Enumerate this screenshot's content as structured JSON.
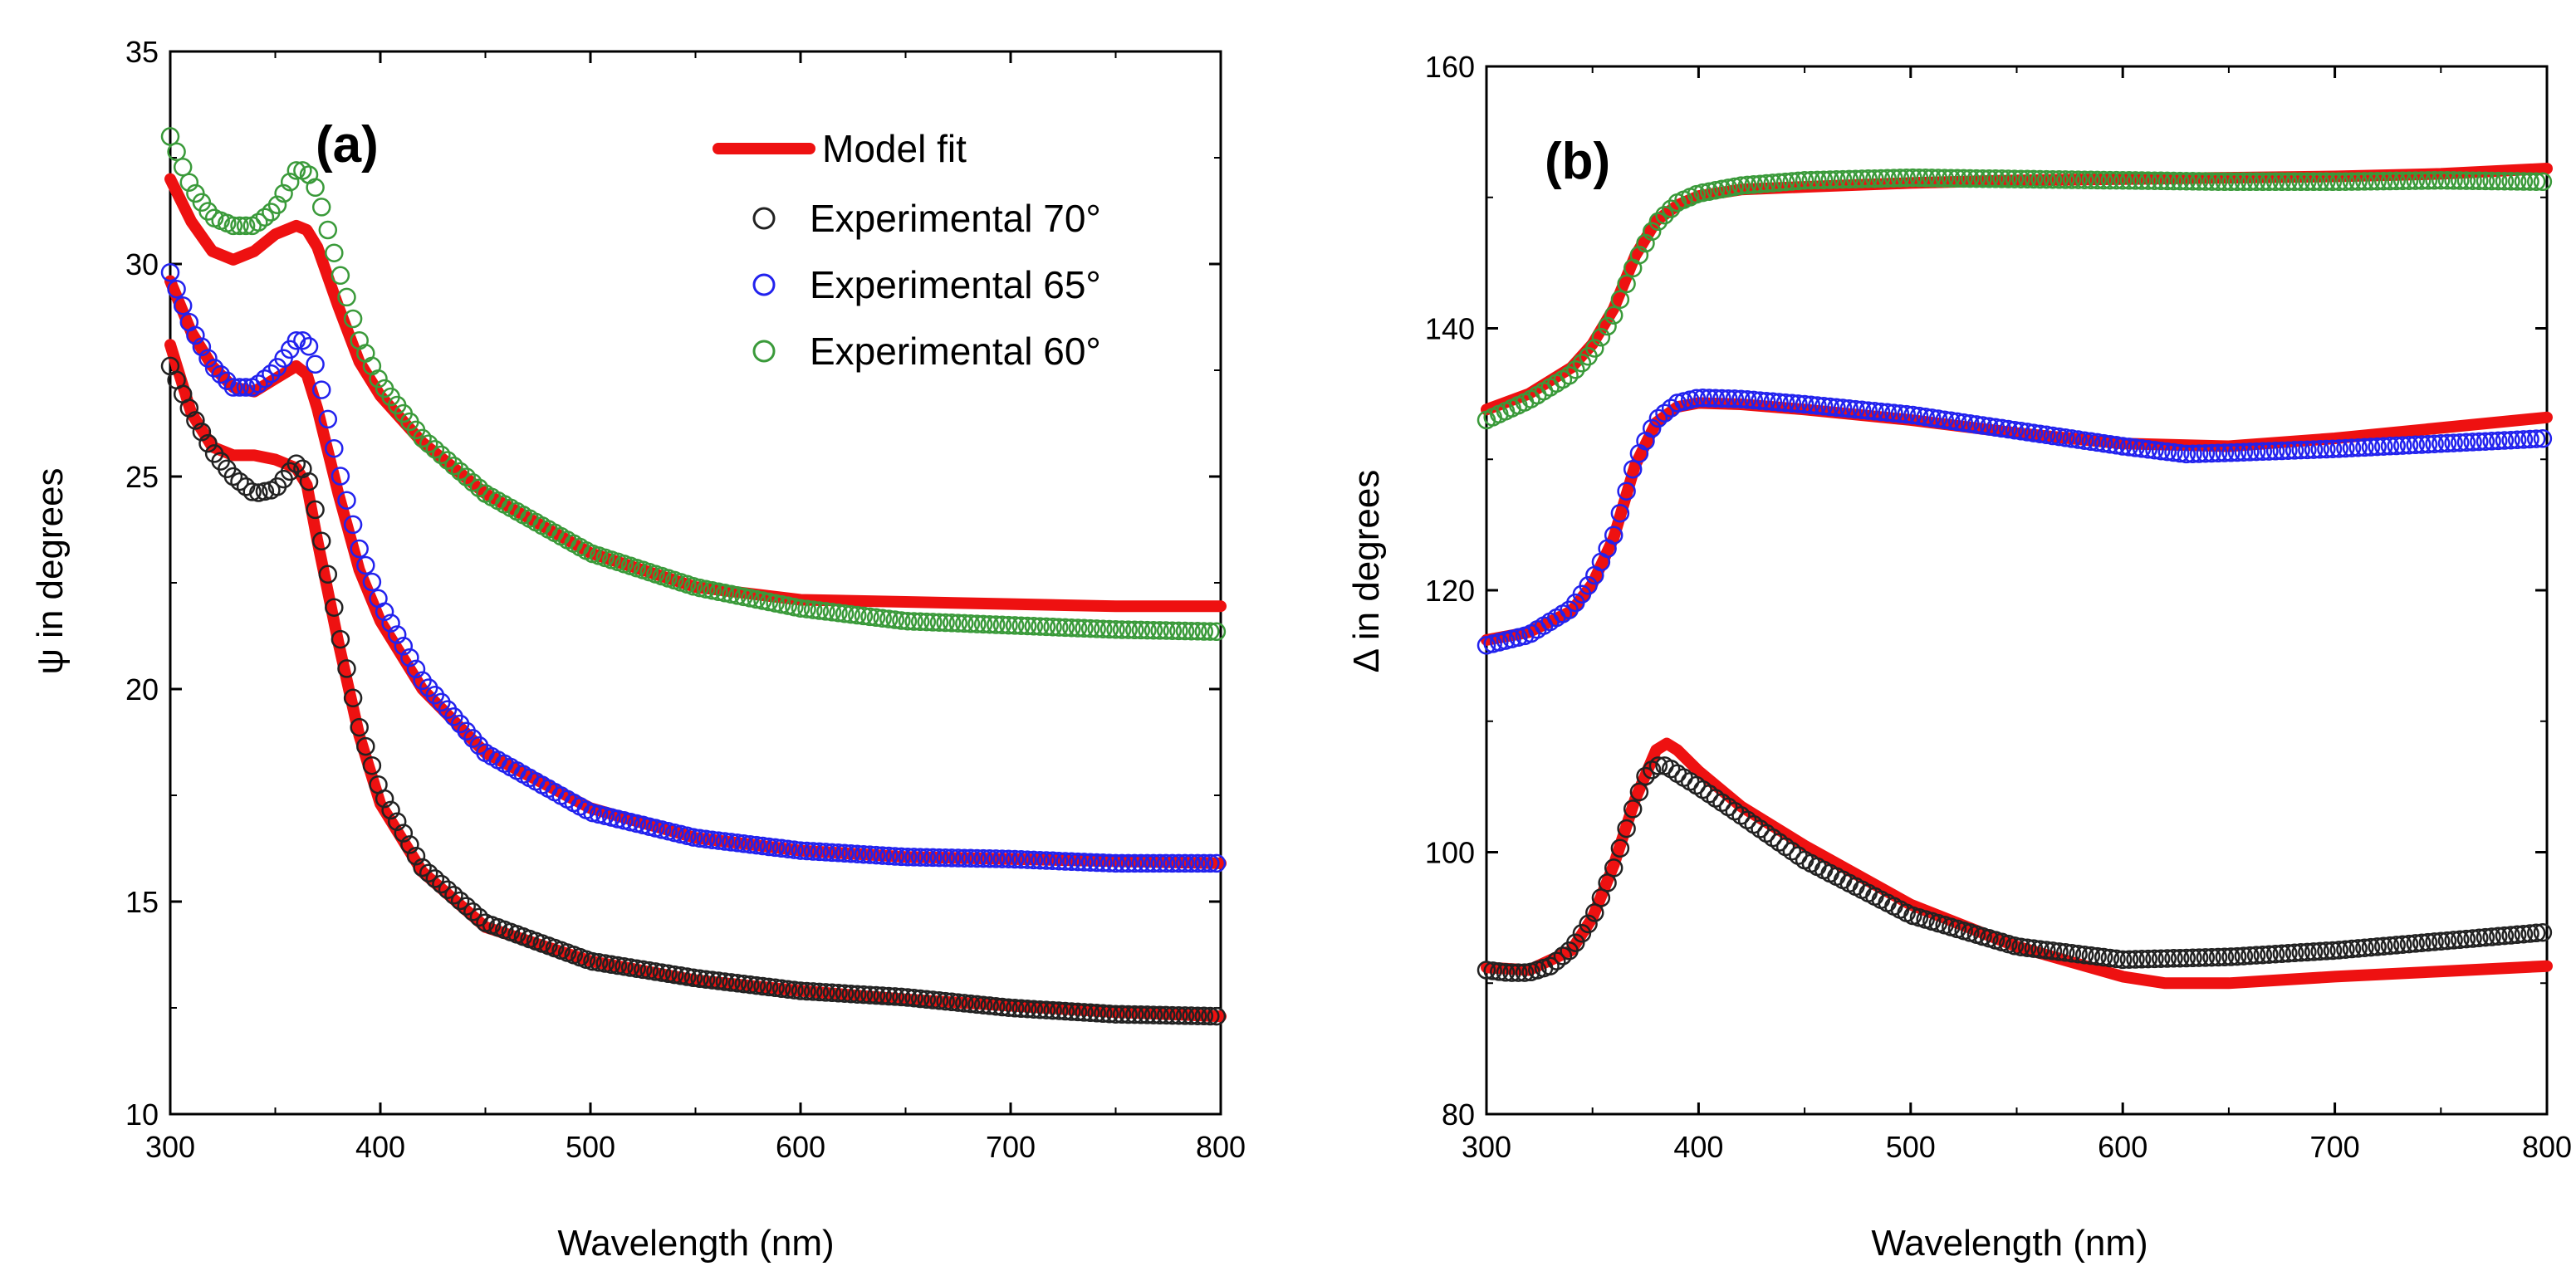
{
  "chart_data": [
    {
      "id": "a",
      "type": "line",
      "panel_label": "(a)",
      "xlabel": "Wavelength (nm)",
      "ylabel": "ψ in degrees",
      "xlim": [
        300,
        800
      ],
      "ylim": [
        10,
        35
      ],
      "xticks": [
        "300",
        "400",
        "500",
        "600",
        "700",
        "800"
      ],
      "yticks": [
        "10",
        "15",
        "20",
        "25",
        "30",
        "35"
      ],
      "legend": {
        "placement": "top-right",
        "entries": [
          {
            "label": "Model fit",
            "marker": "line",
            "color": "#ee1111"
          },
          {
            "label": "Experimental 70°",
            "marker": "circle",
            "color": "#222222"
          },
          {
            "label": "Experimental 65°",
            "marker": "circle",
            "color": "#2222ee"
          },
          {
            "label": "Experimental 60°",
            "marker": "circle",
            "color": "#3a9a3a"
          }
        ]
      },
      "series": [
        {
          "name": "Model fit 60°",
          "kind": "fit",
          "color": "#ee1111",
          "x": [
            300,
            310,
            320,
            330,
            340,
            350,
            360,
            365,
            370,
            380,
            390,
            400,
            420,
            450,
            500,
            550,
            600,
            650,
            700,
            750,
            800
          ],
          "y": [
            32.0,
            31.0,
            30.3,
            30.1,
            30.3,
            30.7,
            30.9,
            30.8,
            30.4,
            29.0,
            27.7,
            26.9,
            25.8,
            24.6,
            23.2,
            22.4,
            22.1,
            22.05,
            22.0,
            21.95,
            21.95
          ]
        },
        {
          "name": "Model fit 65°",
          "kind": "fit",
          "color": "#ee1111",
          "x": [
            300,
            310,
            320,
            330,
            340,
            350,
            360,
            365,
            370,
            380,
            390,
            400,
            420,
            450,
            500,
            550,
            600,
            650,
            700,
            750,
            800
          ],
          "y": [
            29.6,
            28.4,
            27.6,
            27.1,
            27.0,
            27.3,
            27.6,
            27.4,
            26.6,
            24.6,
            22.8,
            21.6,
            20.0,
            18.5,
            17.2,
            16.5,
            16.2,
            16.05,
            16.0,
            15.95,
            15.9
          ]
        },
        {
          "name": "Model fit 70°",
          "kind": "fit",
          "color": "#ee1111",
          "x": [
            300,
            310,
            320,
            330,
            340,
            350,
            360,
            365,
            370,
            380,
            390,
            400,
            420,
            450,
            500,
            550,
            600,
            650,
            700,
            750,
            800
          ],
          "y": [
            28.1,
            26.5,
            25.7,
            25.5,
            25.5,
            25.4,
            25.2,
            24.8,
            23.5,
            21.1,
            18.9,
            17.3,
            15.7,
            14.4,
            13.6,
            13.15,
            12.9,
            12.7,
            12.55,
            12.4,
            12.3
          ]
        },
        {
          "name": "Experimental 60°",
          "kind": "points",
          "color": "#3a9a3a",
          "x": [
            300,
            310,
            320,
            330,
            340,
            350,
            360,
            365,
            370,
            380,
            390,
            400,
            420,
            450,
            500,
            550,
            600,
            650,
            700,
            750,
            800
          ],
          "y": [
            33.0,
            31.8,
            31.1,
            30.9,
            30.9,
            31.3,
            32.2,
            32.2,
            31.7,
            29.9,
            28.2,
            27.2,
            25.9,
            24.6,
            23.2,
            22.4,
            21.9,
            21.6,
            21.5,
            21.4,
            21.35
          ]
        },
        {
          "name": "Experimental 65°",
          "kind": "points",
          "color": "#2222ee",
          "x": [
            300,
            310,
            320,
            330,
            340,
            350,
            360,
            365,
            370,
            380,
            390,
            400,
            420,
            450,
            500,
            550,
            600,
            650,
            700,
            750,
            800
          ],
          "y": [
            29.8,
            28.5,
            27.6,
            27.1,
            27.1,
            27.5,
            28.2,
            28.2,
            27.5,
            25.2,
            23.3,
            22.0,
            20.2,
            18.5,
            17.1,
            16.5,
            16.2,
            16.05,
            16.0,
            15.9,
            15.9
          ]
        },
        {
          "name": "Experimental 70°",
          "kind": "points",
          "color": "#222222",
          "x": [
            300,
            310,
            320,
            330,
            340,
            350,
            360,
            365,
            370,
            380,
            390,
            400,
            420,
            450,
            500,
            550,
            600,
            650,
            700,
            750,
            800
          ],
          "y": [
            27.6,
            26.5,
            25.6,
            25.0,
            24.6,
            24.7,
            25.3,
            25.1,
            24.0,
            21.4,
            19.1,
            17.6,
            15.8,
            14.5,
            13.6,
            13.2,
            12.9,
            12.75,
            12.5,
            12.35,
            12.3
          ]
        }
      ]
    },
    {
      "id": "b",
      "type": "line",
      "panel_label": "(b)",
      "xlabel": "Wavelength (nm)",
      "ylabel": "Δ in degrees",
      "xlim": [
        300,
        800
      ],
      "ylim": [
        80,
        160
      ],
      "xticks": [
        "300",
        "400",
        "500",
        "600",
        "700",
        "800"
      ],
      "yticks": [
        "80",
        "100",
        "120",
        "140",
        "160"
      ],
      "series": [
        {
          "name": "Model fit 60°",
          "kind": "fit",
          "color": "#ee1111",
          "x": [
            300,
            320,
            340,
            350,
            360,
            370,
            380,
            390,
            400,
            420,
            450,
            500,
            550,
            600,
            650,
            700,
            750,
            800
          ],
          "y": [
            133.8,
            135.0,
            137.0,
            138.8,
            141.5,
            145.5,
            148.2,
            149.4,
            150.1,
            150.6,
            150.8,
            151.1,
            151.3,
            151.4,
            151.5,
            151.6,
            151.8,
            152.2
          ]
        },
        {
          "name": "Model fit 65°",
          "kind": "fit",
          "color": "#ee1111",
          "x": [
            300,
            320,
            340,
            350,
            360,
            370,
            380,
            390,
            400,
            420,
            450,
            500,
            550,
            600,
            650,
            700,
            750,
            800
          ],
          "y": [
            116.2,
            116.8,
            118.4,
            120.5,
            124.0,
            129.5,
            132.8,
            134.0,
            134.3,
            134.2,
            133.8,
            133.0,
            132.0,
            131.2,
            131.0,
            131.6,
            132.4,
            133.2
          ]
        },
        {
          "name": "Model fit 70°",
          "kind": "fit",
          "color": "#ee1111",
          "x": [
            300,
            320,
            340,
            350,
            360,
            370,
            380,
            385,
            390,
            400,
            420,
            450,
            500,
            550,
            600,
            620,
            650,
            700,
            750,
            800
          ],
          "y": [
            91.2,
            91.0,
            92.5,
            95.0,
            99.0,
            104.0,
            107.8,
            108.3,
            107.8,
            106.2,
            103.5,
            100.5,
            96.0,
            92.8,
            90.5,
            90.0,
            90.0,
            90.5,
            90.9,
            91.3
          ]
        },
        {
          "name": "Experimental 60°",
          "kind": "points",
          "color": "#3a9a3a",
          "x": [
            300,
            320,
            340,
            350,
            360,
            370,
            380,
            390,
            400,
            420,
            450,
            500,
            550,
            600,
            650,
            700,
            750,
            800
          ],
          "y": [
            133.0,
            134.5,
            136.5,
            138.2,
            141.0,
            145.0,
            148.0,
            149.6,
            150.3,
            150.9,
            151.3,
            151.5,
            151.4,
            151.3,
            151.2,
            151.2,
            151.3,
            151.2
          ]
        },
        {
          "name": "Experimental 65°",
          "kind": "points",
          "color": "#2222ee",
          "x": [
            300,
            320,
            340,
            350,
            360,
            370,
            380,
            390,
            400,
            420,
            450,
            500,
            550,
            600,
            630,
            650,
            700,
            750,
            800
          ],
          "y": [
            115.8,
            116.6,
            118.6,
            120.8,
            124.2,
            129.8,
            133.0,
            134.3,
            134.7,
            134.6,
            134.2,
            133.4,
            132.2,
            131.0,
            130.4,
            130.5,
            130.8,
            131.2,
            131.6
          ]
        },
        {
          "name": "Experimental 70°",
          "kind": "points",
          "color": "#222222",
          "x": [
            300,
            310,
            320,
            330,
            340,
            350,
            360,
            370,
            375,
            380,
            385,
            390,
            400,
            420,
            450,
            500,
            550,
            600,
            650,
            700,
            750,
            800
          ],
          "y": [
            91.0,
            90.8,
            90.8,
            91.3,
            92.6,
            95.0,
            98.8,
            103.8,
            105.8,
            106.6,
            106.6,
            106.0,
            105.0,
            102.8,
            99.4,
            95.2,
            92.8,
            91.8,
            92.0,
            92.5,
            93.2,
            93.9
          ]
        }
      ]
    }
  ]
}
